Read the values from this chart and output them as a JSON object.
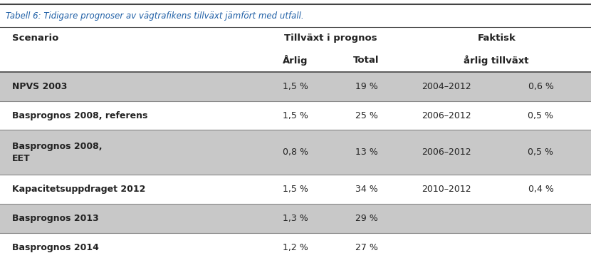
{
  "title": "Tabell 6: Tidigare prognoser av vägtrafikens tillväxt jämfört med utfall.",
  "col_headers_line1": [
    "Scenario",
    "Tillväxt i prognos",
    "",
    "Faktisk",
    ""
  ],
  "col_headers_line2": [
    "",
    "Årlig",
    "Total",
    "årlig tillväxt",
    ""
  ],
  "col_merge_tillvaxt": "Tillväxt i prognos",
  "col_merge_faktisk": "Faktisk",
  "rows": [
    {
      "scenario": "NPVS 2003",
      "arlig": "1,5 %",
      "total": "19 %",
      "period": "2004–2012",
      "faktisk": "0,6 %",
      "shaded": true
    },
    {
      "scenario": "Basprognos 2008, referens",
      "arlig": "1,5 %",
      "total": "25 %",
      "period": "2006–2012",
      "faktisk": "0,5 %",
      "shaded": false
    },
    {
      "scenario": "Basprognos 2008,\nEET",
      "arlig": "0,8 %",
      "total": "13 %",
      "period": "2006–2012",
      "faktisk": "0,5 %",
      "shaded": true
    },
    {
      "scenario": "Kapacitetsuppdraget 2012",
      "arlig": "1,5 %",
      "total": "34 %",
      "period": "2010–2012",
      "faktisk": "0,4 %",
      "shaded": false
    },
    {
      "scenario": "Basprognos 2013",
      "arlig": "1,3 %",
      "total": "29 %",
      "period": "",
      "faktisk": "",
      "shaded": true
    },
    {
      "scenario": "Basprognos 2014",
      "arlig": "1,2 %",
      "total": "27 %",
      "period": "",
      "faktisk": "",
      "shaded": false
    }
  ],
  "shaded_color": "#c8c8c8",
  "white_color": "#ffffff",
  "header_bg": "#ffffff",
  "title_color": "#1f5fa6",
  "border_color": "#555555",
  "text_color": "#333333",
  "fig_bg": "#ffffff"
}
